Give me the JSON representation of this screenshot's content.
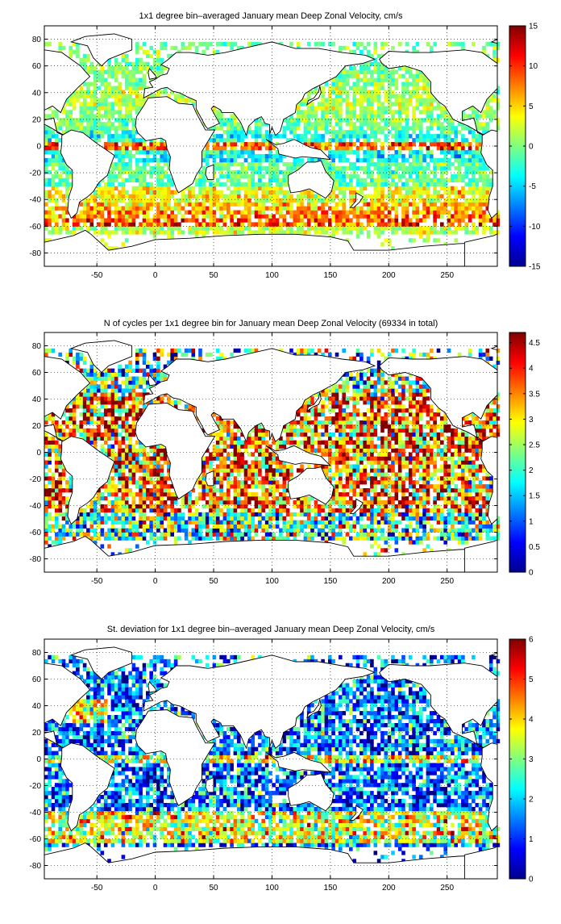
{
  "chart_data": [
    {
      "type": "heatmap",
      "title": "1x1 degree bin–averaged January mean Deep Zonal Velocity, cm/s",
      "xlim": [
        -95,
        293
      ],
      "ylim": [
        -90,
        90
      ],
      "x_ticks": [
        -50,
        0,
        50,
        100,
        150,
        200,
        250
      ],
      "y_ticks": [
        -80,
        -60,
        -40,
        -20,
        0,
        20,
        40,
        60,
        80
      ],
      "colorbar": {
        "min": -15,
        "max": 15,
        "ticks": [
          -15,
          -10,
          -5,
          0,
          5,
          10,
          15
        ]
      },
      "colormap": "jet",
      "grid": "dotted",
      "mean_field_by_latitude": [
        {
          "lat": -65,
          "value": 2
        },
        {
          "lat": -57,
          "value": 10
        },
        {
          "lat": -52,
          "value": 8
        },
        {
          "lat": -45,
          "value": 6
        },
        {
          "lat": -40,
          "value": 4
        },
        {
          "lat": -20,
          "value": -1
        },
        {
          "lat": -5,
          "value": -4
        },
        {
          "lat": 0,
          "value": 9
        },
        {
          "lat": 5,
          "value": -3
        },
        {
          "lat": 20,
          "value": 0
        },
        {
          "lat": 35,
          "value": 2
        },
        {
          "lat": 55,
          "value": 0
        }
      ]
    },
    {
      "type": "heatmap",
      "title": "N of cycles per 1x1 degree bin for January mean Deep Zonal Velocity (69334 in total)",
      "xlim": [
        -95,
        293
      ],
      "ylim": [
        -90,
        90
      ],
      "x_ticks": [
        -50,
        0,
        50,
        100,
        150,
        200,
        250
      ],
      "y_ticks": [
        -80,
        -60,
        -40,
        -20,
        0,
        20,
        40,
        60,
        80
      ],
      "colorbar": {
        "min": 0,
        "max": 4.7,
        "ticks": [
          0,
          0.5,
          1,
          1.5,
          2,
          2.5,
          3,
          3.5,
          4,
          4.5
        ]
      },
      "colormap": "jet",
      "grid": "dotted",
      "total_cycles": 69334
    },
    {
      "type": "heatmap",
      "title": "St. deviation for 1x1 degree bin–averaged January mean Deep Zonal Velocity, cm/s",
      "xlim": [
        -95,
        293
      ],
      "ylim": [
        -90,
        90
      ],
      "x_ticks": [
        -50,
        0,
        50,
        100,
        150,
        200,
        250
      ],
      "y_ticks": [
        -80,
        -60,
        -40,
        -20,
        0,
        20,
        40,
        60,
        80
      ],
      "colorbar": {
        "min": 0,
        "max": 6,
        "ticks": [
          0,
          1,
          2,
          3,
          4,
          5,
          6
        ]
      },
      "colormap": "jet",
      "grid": "dotted"
    }
  ]
}
